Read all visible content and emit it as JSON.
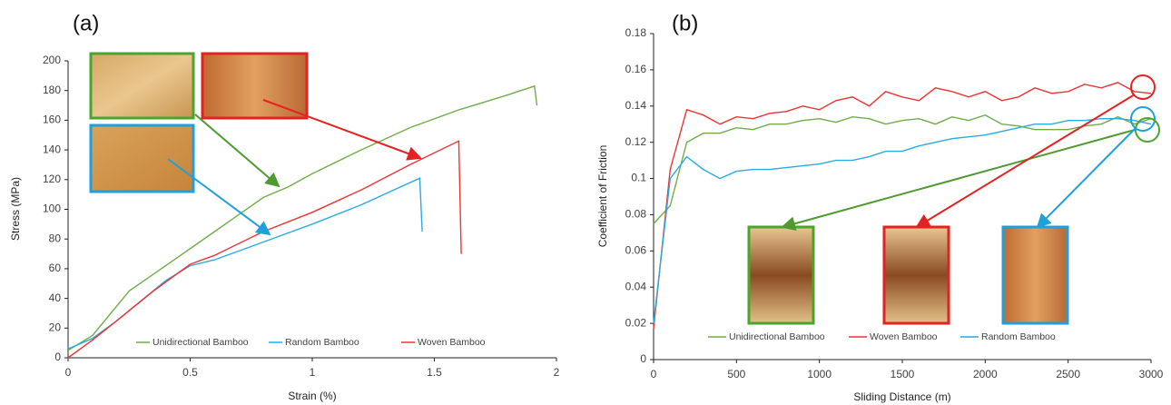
{
  "chart_data": [
    {
      "type": "line",
      "panel_label": "(a)",
      "x_label": "Strain (%)",
      "y_label": "Stress (MPa)",
      "xlim": [
        0,
        2
      ],
      "xticks": [
        0,
        0.5,
        1,
        1.5,
        2
      ],
      "ylim": [
        0,
        200
      ],
      "yticks": [
        0,
        20,
        40,
        60,
        80,
        100,
        120,
        140,
        160,
        180,
        200
      ],
      "series": [
        {
          "name": "Unidirectional Bamboo",
          "color": "#70ad47",
          "x": [
            0,
            0.1,
            0.25,
            0.4,
            0.6,
            0.8,
            0.9,
            1.0,
            1.2,
            1.4,
            1.6,
            1.8,
            1.91,
            1.92
          ],
          "values": [
            5,
            15,
            45,
            62,
            85,
            108,
            115,
            124,
            140,
            155,
            167,
            177,
            183,
            170
          ]
        },
        {
          "name": "Random Bamboo",
          "color": "#29abe2",
          "x": [
            0,
            0.1,
            0.2,
            0.4,
            0.5,
            0.6,
            0.8,
            1.0,
            1.2,
            1.44,
            1.45
          ],
          "values": [
            6,
            13,
            25,
            52,
            62,
            66,
            78,
            90,
            103,
            121,
            85
          ]
        },
        {
          "name": "Woven Bamboo",
          "color": "#ee3333",
          "x": [
            0,
            0.1,
            0.2,
            0.35,
            0.5,
            0.6,
            0.8,
            1.0,
            1.2,
            1.4,
            1.6,
            1.61
          ],
          "values": [
            0,
            12,
            25,
            45,
            63,
            69,
            85,
            98,
            113,
            130,
            146,
            70
          ]
        }
      ]
    },
    {
      "type": "line",
      "panel_label": "(b)",
      "x_label": "Sliding Distance (m)",
      "y_label": "Coefficient of Friction",
      "xlim": [
        0,
        3000
      ],
      "xticks": [
        0,
        500,
        1000,
        1500,
        2000,
        2500,
        3000
      ],
      "ylim": [
        0,
        0.18
      ],
      "yticks": [
        0,
        0.02,
        0.04,
        0.06,
        0.08,
        0.1,
        0.12,
        0.14,
        0.16,
        0.18
      ],
      "x": [
        0,
        100,
        200,
        300,
        400,
        500,
        600,
        700,
        800,
        900,
        1000,
        1100,
        1200,
        1300,
        1400,
        1500,
        1600,
        1700,
        1800,
        1900,
        2000,
        2100,
        2200,
        2300,
        2400,
        2500,
        2600,
        2700,
        2800,
        2900,
        3000
      ],
      "series": [
        {
          "name": "Unidirectional Bamboo",
          "color": "#70ad47",
          "values": [
            0.075,
            0.085,
            0.12,
            0.125,
            0.125,
            0.128,
            0.127,
            0.13,
            0.13,
            0.132,
            0.133,
            0.131,
            0.134,
            0.133,
            0.13,
            0.132,
            0.133,
            0.13,
            0.134,
            0.132,
            0.135,
            0.13,
            0.129,
            0.127,
            0.127,
            0.127,
            0.129,
            0.13,
            0.134,
            0.13,
            0.133
          ]
        },
        {
          "name": "Woven Bamboo",
          "color": "#ee3333",
          "values": [
            0.017,
            0.105,
            0.138,
            0.135,
            0.13,
            0.134,
            0.133,
            0.136,
            0.137,
            0.14,
            0.138,
            0.143,
            0.145,
            0.14,
            0.148,
            0.145,
            0.143,
            0.15,
            0.148,
            0.145,
            0.148,
            0.143,
            0.145,
            0.15,
            0.147,
            0.148,
            0.152,
            0.15,
            0.153,
            0.148,
            0.147
          ]
        },
        {
          "name": "Random Bamboo",
          "color": "#29abe2",
          "values": [
            0.02,
            0.1,
            0.112,
            0.105,
            0.1,
            0.104,
            0.105,
            0.105,
            0.106,
            0.107,
            0.108,
            0.11,
            0.11,
            0.112,
            0.115,
            0.115,
            0.118,
            0.12,
            0.122,
            0.123,
            0.124,
            0.126,
            0.128,
            0.13,
            0.13,
            0.132,
            0.132,
            0.133,
            0.133,
            0.132,
            0.13
          ]
        }
      ]
    }
  ]
}
